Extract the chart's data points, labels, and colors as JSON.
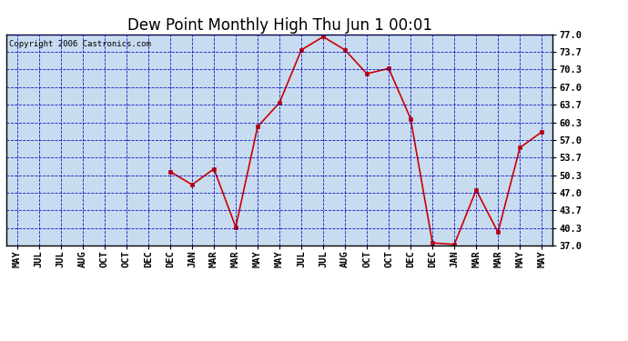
{
  "title": "Dew Point Monthly High Thu Jun 1 00:01",
  "copyright": "Copyright 2006 Castronics.com",
  "x_labels": [
    "MAY",
    "JUL",
    "JUL",
    "AUG",
    "OCT",
    "OCT",
    "DEC",
    "DEC",
    "JAN",
    "MAR",
    "MAR",
    "MAY",
    "MAY",
    "JUL",
    "JUL",
    "AUG",
    "OCT",
    "OCT",
    "DEC",
    "DEC",
    "JAN",
    "MAR",
    "MAR",
    "MAY"
  ],
  "points": [
    [
      7,
      51.0
    ],
    [
      8,
      48.5
    ],
    [
      9,
      51.5
    ],
    [
      10,
      40.5
    ],
    [
      11,
      59.5
    ],
    [
      12,
      64.0
    ],
    [
      13,
      74.0
    ],
    [
      14,
      76.5
    ],
    [
      15,
      74.0
    ],
    [
      16,
      69.5
    ],
    [
      17,
      70.5
    ],
    [
      18,
      61.0
    ],
    [
      19,
      37.5
    ],
    [
      20,
      37.2
    ],
    [
      21,
      47.5
    ],
    [
      22,
      39.5
    ],
    [
      23,
      55.5
    ],
    [
      24,
      58.5
    ]
  ],
  "all_labels": [
    "MAY",
    "JUL",
    "JUL",
    "AUG",
    "OCT",
    "OCT",
    "DEC",
    "DEC",
    "JAN",
    "MAR",
    "MAR",
    "MAY",
    "MAY",
    "JUL",
    "JUL",
    "AUG",
    "OCT",
    "OCT",
    "DEC",
    "DEC",
    "JAN",
    "MAR",
    "MAR",
    "MAY",
    "MAY"
  ],
  "ylim": [
    37.0,
    77.0
  ],
  "yticks": [
    37.0,
    40.3,
    43.7,
    47.0,
    50.3,
    53.7,
    57.0,
    60.3,
    63.7,
    67.0,
    70.3,
    73.7,
    77.0
  ],
  "ytick_labels": [
    "37.0",
    "40.3",
    "43.7",
    "47.0",
    "50.3",
    "53.7",
    "57.0",
    "60.3",
    "63.7",
    "67.0",
    "70.3",
    "73.7",
    "77.0"
  ],
  "line_color": "#cc0000",
  "bg_color": "#c8dcf0",
  "grid_color": "#0000bb",
  "title_fontsize": 12,
  "copyright_fontsize": 6.5,
  "tick_fontsize": 7.5
}
